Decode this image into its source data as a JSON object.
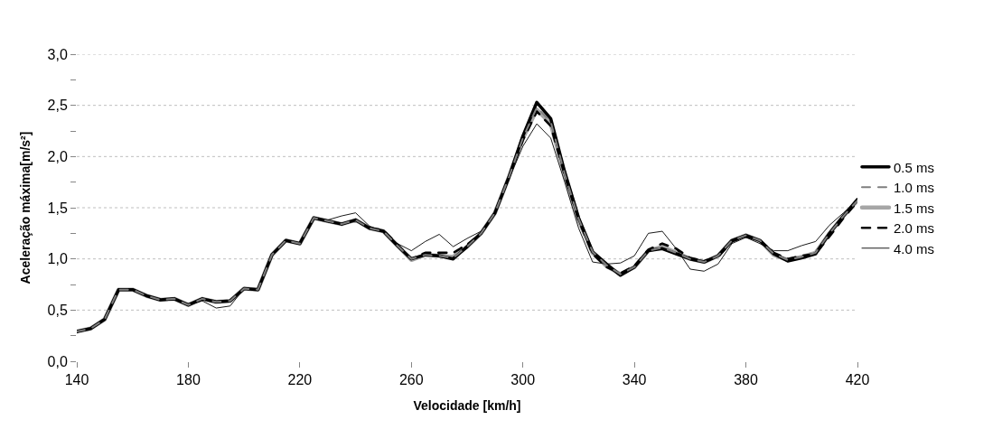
{
  "chart_data": {
    "type": "line",
    "xlabel": "Velocidade [km/h]",
    "ylabel": "Aceleração máxima[m/s²]",
    "x": [
      140,
      145,
      150,
      155,
      160,
      165,
      170,
      175,
      180,
      185,
      190,
      195,
      200,
      205,
      210,
      215,
      220,
      225,
      230,
      235,
      240,
      245,
      250,
      255,
      260,
      265,
      270,
      275,
      280,
      285,
      290,
      295,
      300,
      305,
      310,
      315,
      320,
      325,
      330,
      335,
      340,
      345,
      350,
      355,
      360,
      365,
      370,
      375,
      380,
      385,
      390,
      395,
      400,
      405,
      410,
      415,
      420
    ],
    "series": [
      {
        "name": "0.5 ms",
        "color": "#000000",
        "line_style": "solid",
        "values": [
          0.29,
          0.32,
          0.41,
          0.7,
          0.7,
          0.64,
          0.6,
          0.61,
          0.55,
          0.61,
          0.58,
          0.59,
          0.71,
          0.7,
          1.04,
          1.18,
          1.15,
          1.4,
          1.37,
          1.34,
          1.38,
          1.3,
          1.27,
          1.13,
          1.0,
          1.04,
          1.03,
          1.0,
          1.12,
          1.25,
          1.45,
          1.8,
          2.2,
          2.53,
          2.37,
          1.85,
          1.4,
          1.07,
          0.95,
          0.84,
          0.92,
          1.08,
          1.1,
          1.05,
          1.0,
          0.97,
          1.03,
          1.18,
          1.23,
          1.18,
          1.05,
          0.98,
          1.01,
          1.05,
          1.25,
          1.42,
          1.58
        ]
      },
      {
        "name": "1.0 ms",
        "color": "#7f7f7f",
        "line_style": "dashed",
        "values": [
          0.29,
          0.32,
          0.41,
          0.7,
          0.7,
          0.64,
          0.6,
          0.61,
          0.55,
          0.61,
          0.58,
          0.59,
          0.71,
          0.7,
          1.04,
          1.18,
          1.15,
          1.4,
          1.37,
          1.34,
          1.38,
          1.3,
          1.27,
          1.13,
          1.0,
          1.04,
          1.03,
          1.01,
          1.12,
          1.25,
          1.45,
          1.8,
          2.18,
          2.48,
          2.34,
          1.83,
          1.39,
          1.07,
          0.94,
          0.85,
          0.92,
          1.08,
          1.11,
          1.06,
          1.0,
          0.97,
          1.03,
          1.18,
          1.23,
          1.18,
          1.05,
          0.99,
          1.02,
          1.06,
          1.25,
          1.42,
          1.57
        ]
      },
      {
        "name": "1.5 ms",
        "color": "#a6a6a6",
        "line_style": "solid",
        "values": [
          0.29,
          0.32,
          0.41,
          0.7,
          0.7,
          0.64,
          0.6,
          0.61,
          0.55,
          0.61,
          0.58,
          0.59,
          0.71,
          0.7,
          1.04,
          1.18,
          1.15,
          1.4,
          1.37,
          1.34,
          1.38,
          1.3,
          1.27,
          1.13,
          0.99,
          1.04,
          1.03,
          1.02,
          1.12,
          1.25,
          1.45,
          1.8,
          2.18,
          2.46,
          2.32,
          1.82,
          1.38,
          1.06,
          0.93,
          0.85,
          0.92,
          1.08,
          1.12,
          1.06,
          1.0,
          0.97,
          1.03,
          1.18,
          1.23,
          1.18,
          1.04,
          0.99,
          1.02,
          1.06,
          1.25,
          1.42,
          1.57
        ]
      },
      {
        "name": "2.0 ms",
        "color": "#000000",
        "line_style": "dashed",
        "values": [
          0.29,
          0.32,
          0.41,
          0.7,
          0.7,
          0.64,
          0.6,
          0.61,
          0.55,
          0.61,
          0.58,
          0.59,
          0.71,
          0.7,
          1.04,
          1.18,
          1.15,
          1.4,
          1.37,
          1.34,
          1.38,
          1.3,
          1.28,
          1.14,
          1.0,
          1.06,
          1.06,
          1.06,
          1.14,
          1.25,
          1.45,
          1.8,
          2.16,
          2.44,
          2.3,
          1.82,
          1.38,
          1.05,
          0.92,
          0.86,
          0.93,
          1.09,
          1.15,
          1.1,
          1.01,
          0.98,
          1.02,
          1.17,
          1.22,
          1.18,
          1.06,
          1.0,
          1.03,
          1.05,
          1.22,
          1.4,
          1.56
        ]
      },
      {
        "name": "4.0 ms",
        "color": "#000000",
        "line_style": "solid",
        "values": [
          0.29,
          0.32,
          0.41,
          0.7,
          0.7,
          0.64,
          0.6,
          0.61,
          0.55,
          0.59,
          0.52,
          0.54,
          0.71,
          0.7,
          1.04,
          1.18,
          1.15,
          1.4,
          1.38,
          1.42,
          1.45,
          1.32,
          1.27,
          1.15,
          1.08,
          1.17,
          1.24,
          1.12,
          1.2,
          1.27,
          1.45,
          1.78,
          2.1,
          2.32,
          2.18,
          1.75,
          1.3,
          0.97,
          0.95,
          0.96,
          1.03,
          1.25,
          1.27,
          1.1,
          0.9,
          0.88,
          0.95,
          1.15,
          1.21,
          1.15,
          1.08,
          1.08,
          1.13,
          1.17,
          1.33,
          1.45,
          1.57
        ]
      }
    ],
    "xlim": [
      140,
      420
    ],
    "xticks": [
      140,
      180,
      220,
      260,
      300,
      340,
      380,
      420
    ],
    "ylim": [
      0,
      3
    ],
    "yticks": [
      {
        "value": 0,
        "label": "0,0"
      },
      {
        "value": 0.25,
        "label": null
      },
      {
        "value": 0.5,
        "label": "0,5"
      },
      {
        "value": 0.75,
        "label": null
      },
      {
        "value": 1,
        "label": "1,0"
      },
      {
        "value": 1.25,
        "label": null
      },
      {
        "value": 1.5,
        "label": "1,5"
      },
      {
        "value": 1.75,
        "label": null
      },
      {
        "value": 2,
        "label": "2,0"
      },
      {
        "value": 2.25,
        "label": null
      },
      {
        "value": 2.5,
        "label": "2,5"
      },
      {
        "value": 2.75,
        "label": null
      },
      {
        "value": 3,
        "label": "3,0"
      }
    ],
    "grid": "y",
    "legend": "right"
  }
}
